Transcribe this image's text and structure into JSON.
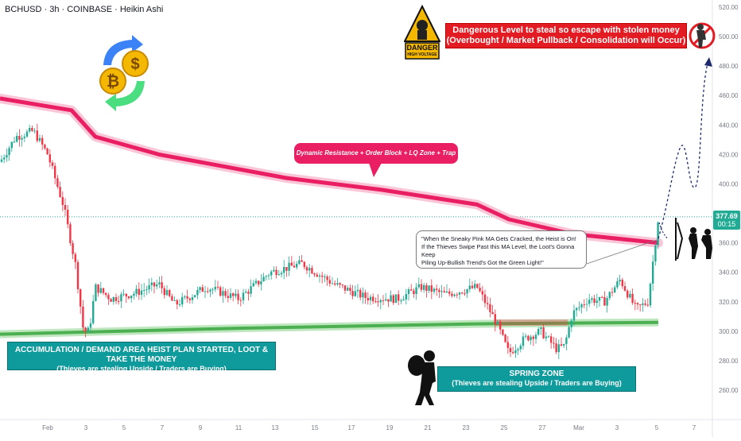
{
  "header": {
    "title": "BCHUSD · 3h · COINBASE · Heikin Ashi"
  },
  "price_badge": {
    "price": "377.69",
    "time": "00:15"
  },
  "annotations": {
    "danger_title": "Dangerous Level to steal so escape with stolen money",
    "danger_sub": "(Overbought / Market Pullback / Consolidation will Occur)",
    "resistance": "Dynamic Resistance + Order Block + LQ Zone + Trap area",
    "quote_l1": "\"When the Sneaky Pink MA Gets Cracked, the Heist is On!",
    "quote_l2": "If the Thieves Swipe Past this MA Level, the Loot's Gonna Keep",
    "quote_l3": "Piling Up-Bullish Trend's Got the Green Light!\"",
    "accum_title": "ACCUMULATION / DEMAND AREA HEIST PLAN STARTED, LOOT & TAKE THE MONEY",
    "accum_sub": "(Thieves are stealing Upside / Traders are Buying)",
    "spring_title": "SPRING ZONE",
    "spring_sub": "(Thieves are stealing Upside / Traders are Buying)",
    "danger_sign_top": "DANGER",
    "danger_sign_bottom": "HIGH VOLTAGE"
  },
  "colors": {
    "up": "#22ab94",
    "down": "#f23645",
    "pink_ma": "#e91e63",
    "green_ma": "#4caf50",
    "axis_text": "#787b86"
  },
  "chart_data": {
    "type": "candlestick",
    "y_ticks": [
      260,
      280,
      300,
      320,
      340,
      360,
      380,
      400,
      420,
      440,
      460,
      480,
      500,
      520
    ],
    "ylim": [
      240,
      525
    ],
    "x_ticks": [
      "Feb",
      "3",
      "5",
      "7",
      "9",
      "11",
      "13",
      "15",
      "17",
      "19",
      "21",
      "23",
      "25",
      "27",
      "Mar",
      "3",
      "5",
      "7"
    ],
    "last_price": 377.69,
    "pink_ma": [
      [
        0,
        458
      ],
      [
        90,
        450
      ],
      [
        120,
        432
      ],
      [
        200,
        420
      ],
      [
        360,
        404
      ],
      [
        480,
        396
      ],
      [
        600,
        386
      ],
      [
        640,
        376
      ],
      [
        720,
        366
      ],
      [
        828,
        360
      ]
    ],
    "green_ma": [
      [
        0,
        298
      ],
      [
        300,
        302
      ],
      [
        600,
        305
      ],
      [
        828,
        306
      ]
    ],
    "candles_path": [
      [
        0,
        415
      ],
      [
        20,
        432
      ],
      [
        42,
        436
      ],
      [
        60,
        420
      ],
      [
        80,
        385
      ],
      [
        95,
        345
      ],
      [
        105,
        300
      ],
      [
        112,
        300
      ],
      [
        120,
        330
      ],
      [
        140,
        322
      ],
      [
        170,
        326
      ],
      [
        200,
        332
      ],
      [
        220,
        318
      ],
      [
        260,
        330
      ],
      [
        300,
        322
      ],
      [
        340,
        340
      ],
      [
        380,
        346
      ],
      [
        420,
        332
      ],
      [
        460,
        323
      ],
      [
        500,
        322
      ],
      [
        530,
        330
      ],
      [
        560,
        325
      ],
      [
        600,
        330
      ],
      [
        625,
        305
      ],
      [
        640,
        285
      ],
      [
        660,
        295
      ],
      [
        680,
        300
      ],
      [
        700,
        288
      ],
      [
        710,
        290
      ],
      [
        720,
        312
      ],
      [
        740,
        322
      ],
      [
        760,
        320
      ],
      [
        780,
        335
      ],
      [
        800,
        315
      ],
      [
        815,
        320
      ],
      [
        828,
        377
      ]
    ]
  }
}
